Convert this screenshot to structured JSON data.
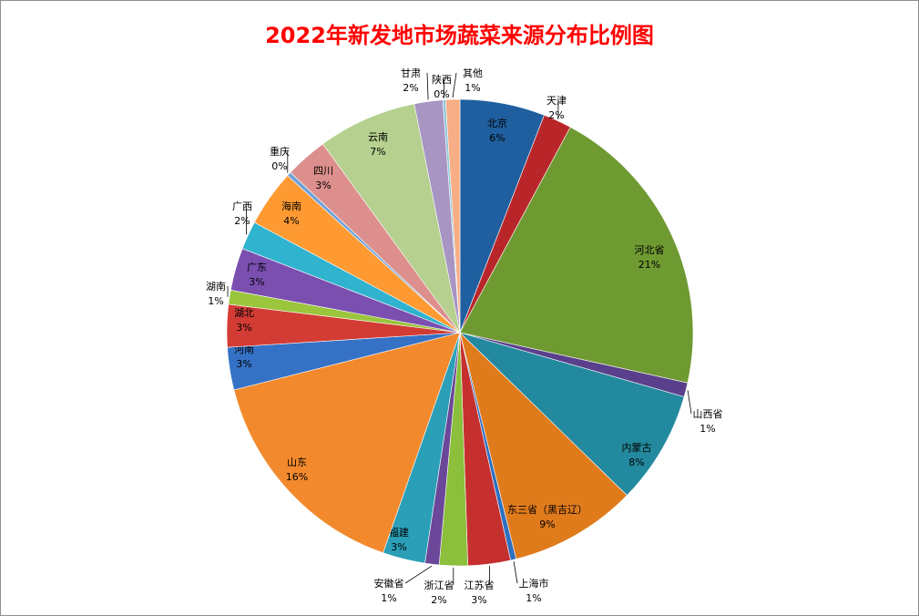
{
  "chart_data": {
    "type": "pie",
    "title": "2022年新发地市场蔬菜来源分布比例图",
    "legend": "none",
    "slices": [
      {
        "label": "北京",
        "value": 6,
        "pct_label": "6%",
        "color": "#1f5f9f"
      },
      {
        "label": "天津",
        "value": 2,
        "pct_label": "2%",
        "color": "#b9262a"
      },
      {
        "label": "河北省",
        "value": 21,
        "pct_label": "21%",
        "color": "#6f9a32"
      },
      {
        "label": "山西省",
        "value": 1,
        "pct_label": "1%",
        "color": "#5a3f8c"
      },
      {
        "label": "内蒙古",
        "value": 8,
        "pct_label": "8%",
        "color": "#23899e"
      },
      {
        "label": "东三省（黑吉辽）",
        "value": 9,
        "pct_label": "9%",
        "color": "#e07b1c"
      },
      {
        "label": "上海市",
        "value": 0.4,
        "pct_label": "1%",
        "color": "#2e6fc0"
      },
      {
        "label": "江苏省",
        "value": 3,
        "pct_label": "3%",
        "color": "#c5302f"
      },
      {
        "label": "浙江省",
        "value": 2,
        "pct_label": "2%",
        "color": "#8cbf3b"
      },
      {
        "label": "安徽省",
        "value": 1,
        "pct_label": "1%",
        "color": "#6b4799"
      },
      {
        "label": "福建",
        "value": 3,
        "pct_label": "3%",
        "color": "#2a9fb7"
      },
      {
        "label": "山东",
        "value": 16,
        "pct_label": "16%",
        "color": "#f28a2d"
      },
      {
        "label": "河南",
        "value": 3,
        "pct_label": "3%",
        "color": "#3572c6"
      },
      {
        "label": "湖北",
        "value": 3,
        "pct_label": "3%",
        "color": "#d33c35"
      },
      {
        "label": "湖南",
        "value": 1,
        "pct_label": "1%",
        "color": "#9bc53d"
      },
      {
        "label": "广东",
        "value": 3,
        "pct_label": "3%",
        "color": "#7a4fb0"
      },
      {
        "label": "广西",
        "value": 2,
        "pct_label": "2%",
        "color": "#30b3cf"
      },
      {
        "label": "海南",
        "value": 4,
        "pct_label": "4%",
        "color": "#ff9a33"
      },
      {
        "label": "重庆",
        "value": 0.3,
        "pct_label": "0%",
        "color": "#6fa0d8"
      },
      {
        "label": "四川",
        "value": 3,
        "pct_label": "3%",
        "color": "#dc8f8c"
      },
      {
        "label": "云南",
        "value": 7,
        "pct_label": "7%",
        "color": "#b5d08f"
      },
      {
        "label": "甘肃",
        "value": 2,
        "pct_label": "2%",
        "color": "#a895c3"
      },
      {
        "label": "陕西",
        "value": 0.2,
        "pct_label": "0%",
        "color": "#8fc6d9"
      },
      {
        "label": "其他",
        "value": 1,
        "pct_label": "1%",
        "color": "#f7ad85"
      }
    ]
  }
}
